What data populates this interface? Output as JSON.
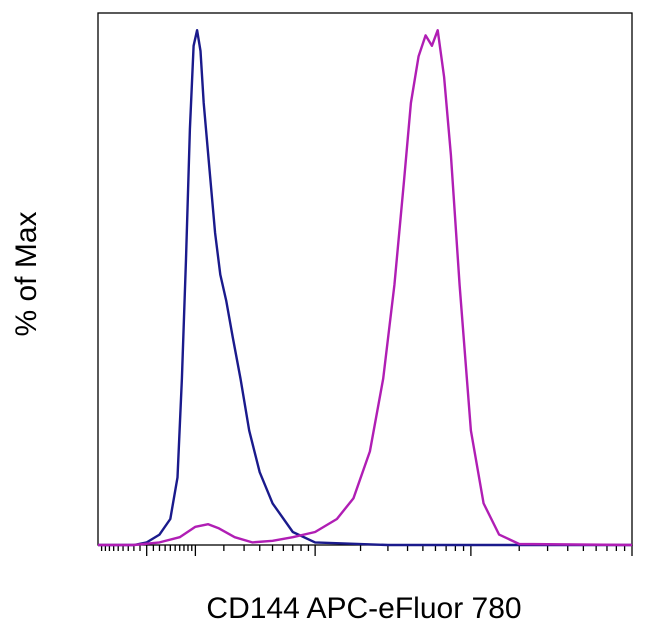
{
  "chart_data": {
    "type": "line",
    "title": "",
    "xlabel": "CD144 APC-eFluor 780",
    "ylabel": "% of Max",
    "x_scale": "log",
    "xlim": [
      -100,
      100000
    ],
    "ylim": [
      0,
      100
    ],
    "grid": false,
    "legend": "none",
    "series": [
      {
        "color": "#1a1a8c",
        "x": [
          -100,
          -20,
          0,
          20,
          40,
          55,
          65,
          75,
          85,
          95,
          105,
          115,
          125,
          145,
          165,
          185,
          210,
          240,
          280,
          330,
          400,
          500,
          700,
          1000,
          3000,
          10000,
          100000
        ],
        "y": [
          0,
          0,
          0.5,
          2,
          5,
          13,
          32,
          55,
          80,
          96,
          99,
          95,
          85,
          72,
          60,
          52,
          47,
          40,
          32,
          22,
          14,
          8,
          2.5,
          0.5,
          0,
          0,
          0
        ]
      },
      {
        "color": "#b01eb4",
        "x": [
          -100,
          -20,
          20,
          60,
          100,
          140,
          180,
          250,
          350,
          500,
          700,
          1000,
          1400,
          1800,
          2300,
          2800,
          3300,
          3800,
          4200,
          4700,
          5200,
          5700,
          6200,
          6800,
          7500,
          8500,
          10000,
          12000,
          15000,
          20000,
          100000
        ],
        "y": [
          0,
          0,
          0.5,
          1.5,
          3.5,
          4,
          3.2,
          1.5,
          0.5,
          0.8,
          1.5,
          2.5,
          5,
          9,
          18,
          32,
          50,
          70,
          85,
          94,
          98,
          96,
          99,
          90,
          75,
          50,
          22,
          8,
          2,
          0.2,
          0
        ]
      }
    ]
  }
}
